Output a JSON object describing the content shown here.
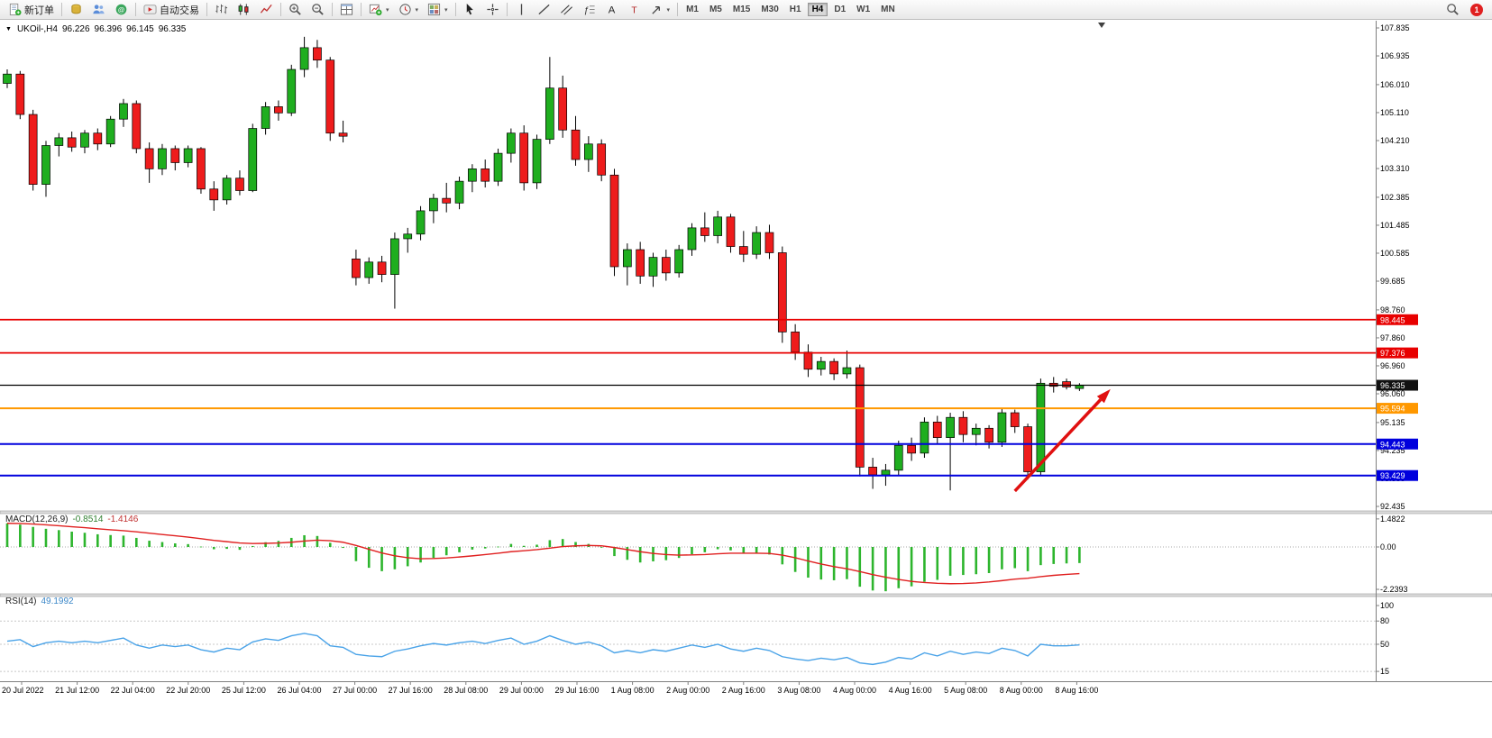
{
  "toolbar": {
    "groups": [
      [
        {
          "icon": "new-order",
          "label": "新订单"
        }
      ],
      [
        {
          "icon": "market-watch"
        },
        {
          "icon": "profiles"
        },
        {
          "icon": "community"
        }
      ],
      [
        {
          "icon": "autotrade",
          "label": "自动交易"
        }
      ],
      [
        {
          "icon": "bar-chart"
        },
        {
          "icon": "candlestick-chart"
        },
        {
          "icon": "line-chart"
        }
      ],
      [
        {
          "icon": "zoom-in"
        },
        {
          "icon": "zoom-out"
        }
      ],
      [
        {
          "icon": "tile-windows"
        }
      ],
      [
        {
          "icon": "new-chart",
          "caret": true
        },
        {
          "icon": "period",
          "caret": true
        },
        {
          "icon": "template",
          "caret": true
        }
      ],
      [
        {
          "icon": "cursor"
        },
        {
          "icon": "crosshair"
        }
      ],
      [
        {
          "icon": "vertical-line"
        },
        {
          "icon": "trendline"
        },
        {
          "icon": "channel"
        },
        {
          "icon": "fibonacci"
        },
        {
          "icon": "text"
        },
        {
          "icon": "label"
        },
        {
          "icon": "shapes",
          "caret": true
        }
      ]
    ],
    "timeframes": {
      "items": [
        "M1",
        "M5",
        "M15",
        "M30",
        "H1",
        "H4",
        "D1",
        "W1",
        "MN"
      ],
      "active": "H4"
    },
    "notification_count": "1"
  },
  "chart_data": {
    "type": "candlestick",
    "symbol": "UKOil-",
    "timeframe": "H4",
    "header": {
      "symbol_period": "UKOil-,H4",
      "open": "96.226",
      "high": "96.396",
      "low": "96.145",
      "close": "96.335"
    },
    "price_axis_labels": [
      "107.835",
      "106.935",
      "106.010",
      "105.110",
      "104.210",
      "103.310",
      "102.385",
      "101.485",
      "100.585",
      "99.685",
      "98.760",
      "97.860",
      "96.960",
      "96.060",
      "95.135",
      "94.235",
      "93.335",
      "92.435"
    ],
    "x_labels": [
      "20 Jul 2022",
      "21 Jul 12:00",
      "22 Jul 04:00",
      "22 Jul 20:00",
      "25 Jul 12:00",
      "26 Jul 04:00",
      "27 Jul 00:00",
      "27 Jul 16:00",
      "28 Jul 08:00",
      "29 Jul 00:00",
      "29 Jul 16:00",
      "1 Aug 08:00",
      "2 Aug 00:00",
      "2 Aug 16:00",
      "3 Aug 08:00",
      "4 Aug 00:00",
      "4 Aug 16:00",
      "5 Aug 08:00",
      "8 Aug 00:00",
      "8 Aug 16:00"
    ],
    "candles": [
      [
        106.05,
        106.5,
        105.9,
        106.35
      ],
      [
        106.35,
        106.45,
        104.9,
        105.05
      ],
      [
        105.05,
        105.2,
        102.6,
        102.8
      ],
      [
        102.8,
        104.2,
        102.4,
        104.05
      ],
      [
        104.05,
        104.45,
        103.7,
        104.3
      ],
      [
        104.3,
        104.5,
        103.85,
        104.0
      ],
      [
        104.0,
        104.55,
        103.8,
        104.45
      ],
      [
        104.45,
        104.6,
        103.9,
        104.1
      ],
      [
        104.1,
        105.0,
        104.0,
        104.9
      ],
      [
        104.9,
        105.55,
        104.65,
        105.4
      ],
      [
        105.4,
        105.5,
        103.8,
        103.95
      ],
      [
        103.95,
        104.15,
        102.85,
        103.3
      ],
      [
        103.3,
        104.1,
        103.1,
        103.95
      ],
      [
        103.95,
        104.05,
        103.25,
        103.5
      ],
      [
        103.5,
        104.05,
        103.35,
        103.95
      ],
      [
        103.95,
        104.0,
        102.5,
        102.65
      ],
      [
        102.65,
        102.9,
        101.95,
        102.3
      ],
      [
        102.3,
        103.1,
        102.15,
        103.0
      ],
      [
        103.0,
        103.25,
        102.45,
        102.6
      ],
      [
        102.6,
        104.75,
        102.55,
        104.6
      ],
      [
        104.6,
        105.45,
        104.4,
        105.3
      ],
      [
        105.3,
        105.5,
        104.85,
        105.1
      ],
      [
        105.1,
        106.65,
        105.0,
        106.5
      ],
      [
        106.5,
        107.55,
        106.25,
        107.2
      ],
      [
        107.2,
        107.45,
        106.55,
        106.8
      ],
      [
        106.8,
        106.9,
        104.2,
        104.45
      ],
      [
        104.45,
        104.85,
        104.15,
        104.35
      ],
      [
        100.4,
        100.7,
        99.55,
        99.8
      ],
      [
        99.8,
        100.45,
        99.6,
        100.3
      ],
      [
        100.3,
        100.5,
        99.65,
        99.9
      ],
      [
        99.9,
        101.25,
        98.8,
        101.05
      ],
      [
        101.05,
        101.4,
        100.6,
        101.2
      ],
      [
        101.2,
        102.1,
        101.0,
        101.95
      ],
      [
        101.95,
        102.5,
        101.55,
        102.35
      ],
      [
        102.35,
        102.85,
        101.9,
        102.2
      ],
      [
        102.2,
        103.05,
        102.0,
        102.9
      ],
      [
        102.9,
        103.45,
        102.55,
        103.3
      ],
      [
        103.3,
        103.6,
        102.7,
        102.9
      ],
      [
        102.9,
        103.95,
        102.75,
        103.8
      ],
      [
        103.8,
        104.6,
        103.5,
        104.45
      ],
      [
        104.45,
        104.7,
        102.6,
        102.85
      ],
      [
        102.85,
        104.4,
        102.65,
        104.25
      ],
      [
        104.25,
        106.9,
        104.1,
        105.9
      ],
      [
        105.9,
        106.3,
        104.3,
        104.55
      ],
      [
        104.55,
        105.0,
        103.4,
        103.6
      ],
      [
        103.6,
        104.35,
        103.2,
        104.1
      ],
      [
        104.1,
        104.25,
        102.9,
        103.1
      ],
      [
        103.1,
        103.3,
        99.85,
        100.15
      ],
      [
        100.15,
        100.9,
        99.55,
        100.7
      ],
      [
        100.7,
        100.95,
        99.6,
        99.85
      ],
      [
        99.85,
        100.6,
        99.5,
        100.45
      ],
      [
        100.45,
        100.7,
        99.7,
        99.95
      ],
      [
        99.95,
        100.85,
        99.8,
        100.7
      ],
      [
        100.7,
        101.55,
        100.5,
        101.4
      ],
      [
        101.4,
        101.9,
        100.95,
        101.15
      ],
      [
        101.15,
        101.95,
        100.9,
        101.75
      ],
      [
        101.75,
        101.85,
        100.6,
        100.8
      ],
      [
        100.8,
        101.3,
        100.3,
        100.55
      ],
      [
        100.55,
        101.45,
        100.4,
        101.25
      ],
      [
        101.25,
        101.5,
        100.4,
        100.6
      ],
      [
        100.6,
        100.8,
        97.7,
        98.05
      ],
      [
        98.05,
        98.3,
        97.15,
        97.4
      ],
      [
        97.4,
        97.65,
        96.6,
        96.85
      ],
      [
        96.85,
        97.25,
        96.65,
        97.1
      ],
      [
        97.1,
        97.2,
        96.5,
        96.7
      ],
      [
        96.7,
        97.45,
        96.55,
        96.9
      ],
      [
        96.9,
        97.0,
        93.4,
        93.7
      ],
      [
        93.7,
        94.0,
        93.0,
        93.45
      ],
      [
        93.45,
        93.8,
        93.1,
        93.6
      ],
      [
        93.6,
        94.55,
        93.45,
        94.4
      ],
      [
        94.4,
        94.65,
        93.9,
        94.15
      ],
      [
        94.15,
        95.3,
        94.0,
        95.15
      ],
      [
        95.15,
        95.35,
        94.45,
        94.65
      ],
      [
        94.65,
        95.45,
        92.95,
        95.3
      ],
      [
        95.3,
        95.5,
        94.5,
        94.75
      ],
      [
        94.75,
        95.1,
        94.4,
        94.95
      ],
      [
        94.95,
        95.05,
        94.3,
        94.5
      ],
      [
        94.5,
        95.6,
        94.35,
        95.45
      ],
      [
        95.45,
        95.55,
        94.8,
        95.0
      ],
      [
        95.0,
        95.1,
        93.3,
        93.55
      ],
      [
        93.55,
        96.55,
        93.45,
        96.4
      ],
      [
        96.4,
        96.6,
        96.1,
        96.3
      ],
      [
        96.45,
        96.55,
        96.2,
        96.28
      ],
      [
        96.23,
        96.4,
        96.15,
        96.34
      ]
    ],
    "horizontal_lines": [
      {
        "label": "98.445",
        "price": 98.445,
        "color": "#e80000",
        "width": 1.8
      },
      {
        "label": "97.376",
        "price": 97.376,
        "color": "#e80000",
        "width": 1.8
      },
      {
        "label": "95.594",
        "price": 95.594,
        "color": "#ff9800",
        "width": 2
      },
      {
        "label": "94.443",
        "price": 94.443,
        "color": "#0000dd",
        "width": 2
      },
      {
        "label": "93.429",
        "price": 93.429,
        "color": "#0000dd",
        "width": 2
      }
    ],
    "bid_line": {
      "label": "96.335",
      "price": 96.335,
      "color": "#000000",
      "width": 1.2
    },
    "annotations": {
      "arrow": {
        "from_bar": 78.0,
        "from_price": 92.93,
        "to_bar": 85.4,
        "to_price": 96.21,
        "color": "#e01010"
      }
    },
    "indicators": {
      "macd": {
        "label": "MACD(12,26,9)",
        "value_main": "-0.8514",
        "value_signal": "-1.4146",
        "scale_labels": [
          "1.4822",
          "0.00",
          "-2.2393"
        ],
        "scale_values": [
          1.4822,
          0,
          -2.2393
        ],
        "histogram_color": "#2db52d",
        "signal_color": "#e02020",
        "histogram": [
          1.25,
          1.18,
          1.06,
          0.96,
          0.89,
          0.81,
          0.75,
          0.67,
          0.63,
          0.6,
          0.48,
          0.33,
          0.26,
          0.19,
          0.15,
          0.02,
          -0.12,
          -0.1,
          -0.15,
          0.05,
          0.25,
          0.32,
          0.48,
          0.62,
          0.58,
          0.22,
          -0.05,
          -0.75,
          -1.1,
          -1.28,
          -1.18,
          -1.02,
          -0.82,
          -0.58,
          -0.44,
          -0.28,
          -0.14,
          -0.08,
          0.02,
          0.16,
          0.06,
          0.12,
          0.36,
          0.42,
          0.26,
          0.16,
          0.0,
          -0.48,
          -0.68,
          -0.82,
          -0.76,
          -0.7,
          -0.58,
          -0.38,
          -0.28,
          -0.12,
          -0.18,
          -0.34,
          -0.33,
          -0.4,
          -0.92,
          -1.32,
          -1.62,
          -1.72,
          -1.76,
          -1.7,
          -2.1,
          -2.3,
          -2.34,
          -2.18,
          -2.08,
          -1.84,
          -1.74,
          -1.52,
          -1.48,
          -1.44,
          -1.38,
          -1.18,
          -1.12,
          -1.28,
          -0.96,
          -0.9,
          -0.87,
          -0.85
        ],
        "signal_line": [
          1.25,
          1.24,
          1.21,
          1.17,
          1.12,
          1.07,
          1.02,
          0.96,
          0.91,
          0.86,
          0.8,
          0.73,
          0.66,
          0.59,
          0.52,
          0.44,
          0.35,
          0.28,
          0.21,
          0.18,
          0.19,
          0.21,
          0.25,
          0.31,
          0.36,
          0.33,
          0.25,
          0.08,
          -0.12,
          -0.32,
          -0.47,
          -0.57,
          -0.62,
          -0.61,
          -0.58,
          -0.53,
          -0.47,
          -0.4,
          -0.33,
          -0.25,
          -0.2,
          -0.14,
          -0.06,
          0.02,
          0.06,
          0.08,
          0.06,
          -0.03,
          -0.14,
          -0.25,
          -0.34,
          -0.4,
          -0.43,
          -0.42,
          -0.4,
          -0.36,
          -0.33,
          -0.33,
          -0.33,
          -0.34,
          -0.43,
          -0.57,
          -0.74,
          -0.9,
          -1.04,
          -1.15,
          -1.3,
          -1.46,
          -1.6,
          -1.72,
          -1.82,
          -1.88,
          -1.92,
          -1.94,
          -1.93,
          -1.9,
          -1.85,
          -1.78,
          -1.7,
          -1.65,
          -1.57,
          -1.5,
          -1.45,
          -1.41
        ]
      },
      "rsi": {
        "label": "RSI(14)",
        "value": "49.1992",
        "line_color": "#4aa3e8",
        "scale_labels": [
          "100",
          "80",
          "50",
          "15"
        ],
        "scale_values": [
          100,
          80,
          50,
          15
        ],
        "levels": [
          80,
          50,
          15
        ],
        "values": [
          54,
          56,
          47,
          52,
          54,
          52,
          54,
          52,
          55,
          58,
          49,
          45,
          49,
          47,
          49,
          43,
          40,
          45,
          43,
          53,
          57,
          55,
          61,
          64,
          61,
          48,
          46,
          37,
          35,
          34,
          41,
          44,
          48,
          51,
          49,
          52,
          54,
          51,
          55,
          58,
          50,
          54,
          61,
          55,
          50,
          53,
          48,
          39,
          42,
          39,
          43,
          41,
          45,
          49,
          46,
          50,
          44,
          41,
          45,
          42,
          34,
          31,
          29,
          32,
          30,
          33,
          26,
          24,
          27,
          33,
          31,
          39,
          35,
          41,
          37,
          40,
          38,
          45,
          42,
          35,
          50,
          48,
          48,
          49.2
        ]
      }
    },
    "colors": {
      "candle_up": "#1fae1f",
      "candle_down": "#ee1c1c",
      "outline": "#000000"
    }
  }
}
